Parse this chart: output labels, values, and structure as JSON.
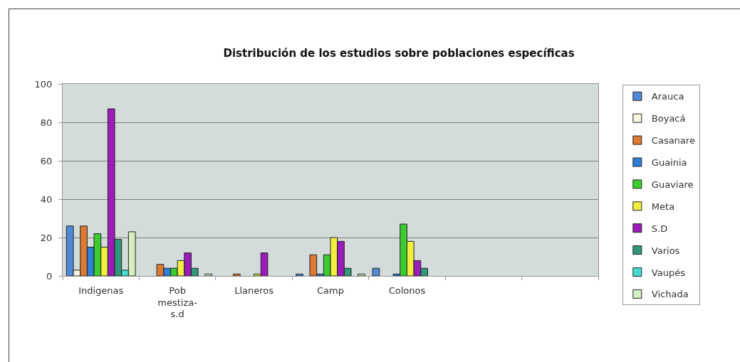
{
  "chart_data": {
    "type": "bar",
    "title": "Distribución de los estudios sobre poblaciones específicas",
    "categories": [
      "Indigenas",
      "Pob mestiza-s.d",
      "Llaneros",
      "Camp",
      "Colonos",
      null,
      null
    ],
    "series": [
      {
        "name": "Arauca",
        "color": "#4f8ad6",
        "values": [
          26,
          null,
          null,
          1,
          4,
          null,
          null
        ]
      },
      {
        "name": "Boyacá",
        "color": "#f6f6e2",
        "values": [
          3,
          null,
          null,
          null,
          null,
          null,
          null
        ]
      },
      {
        "name": "Casanare",
        "color": "#dc7a34",
        "values": [
          26,
          6,
          1,
          11,
          null,
          null,
          null
        ]
      },
      {
        "name": "Guainia",
        "color": "#2f7fd4",
        "values": [
          15,
          4,
          null,
          1,
          1,
          null,
          null
        ]
      },
      {
        "name": "Guaviare",
        "color": "#3ccc30",
        "values": [
          22,
          4,
          null,
          11,
          27,
          null,
          null
        ]
      },
      {
        "name": "Meta",
        "color": "#f2ef3e",
        "values": [
          15,
          8,
          1,
          20,
          18,
          null,
          null
        ]
      },
      {
        "name": "S.D",
        "color": "#9b1cb8",
        "values": [
          87,
          12,
          12,
          18,
          8,
          null,
          null
        ]
      },
      {
        "name": "Varios",
        "color": "#2e9878",
        "values": [
          19,
          4,
          null,
          4,
          4,
          null,
          null
        ]
      },
      {
        "name": "Vaupés",
        "color": "#45ddd2",
        "values": [
          3,
          null,
          null,
          null,
          null,
          null,
          null
        ]
      },
      {
        "name": "Vichada",
        "color": "#d6efc0",
        "values": [
          23,
          1,
          null,
          1,
          null,
          null,
          null
        ]
      }
    ],
    "ylim": [
      0,
      100
    ],
    "yticks": [
      0,
      20,
      40,
      60,
      80,
      100
    ],
    "grid": "y",
    "legend": "right"
  }
}
